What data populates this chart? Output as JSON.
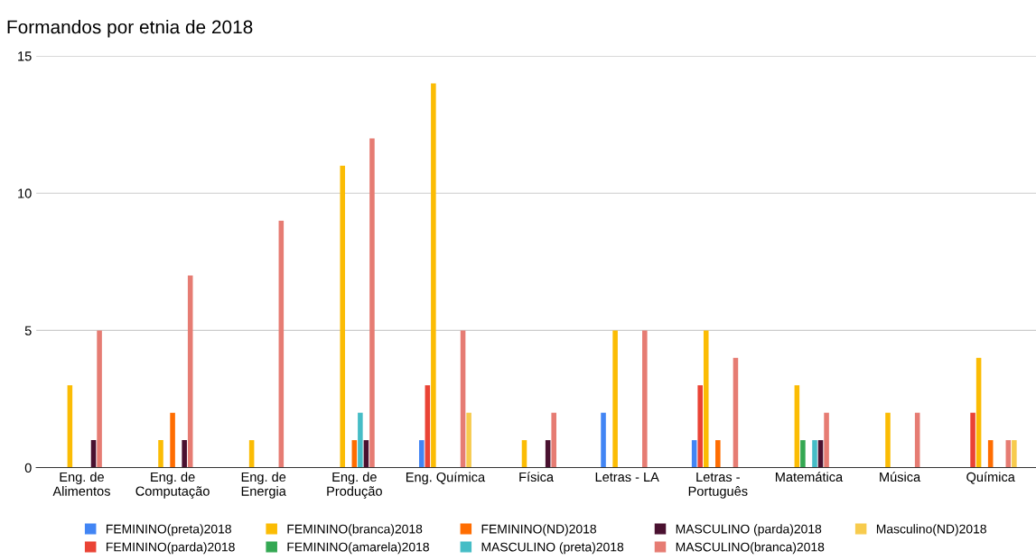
{
  "chart_data": {
    "type": "bar",
    "title": "Formandos por etnia de 2018",
    "categories": [
      "Eng. de\nAlimentos",
      "Eng. de\nComputação",
      "Eng. de\nEnergia",
      "Eng. de\nProdução",
      "Eng. Química",
      "Física",
      "Letras - LA",
      "Letras -\nPortuguês",
      "Matemática",
      "Música",
      "Química"
    ],
    "series": [
      {
        "name": "FEMININO(preta)2018",
        "color": "#4285f4",
        "values": [
          0,
          0,
          0,
          0,
          1,
          0,
          2,
          1,
          0,
          0,
          0
        ]
      },
      {
        "name": "FEMININO(parda)2018",
        "color": "#ea4335",
        "values": [
          0,
          0,
          0,
          0,
          3,
          0,
          0,
          3,
          0,
          0,
          2
        ]
      },
      {
        "name": "FEMININO(branca)2018",
        "color": "#fbbc04",
        "values": [
          3,
          1,
          1,
          11,
          14,
          1,
          5,
          5,
          3,
          2,
          4
        ]
      },
      {
        "name": "FEMININO(amarela)2018",
        "color": "#34a853",
        "values": [
          0,
          0,
          0,
          0,
          0,
          0,
          0,
          0,
          1,
          0,
          0
        ]
      },
      {
        "name": "FEMININO(ND)2018",
        "color": "#ff6d01",
        "values": [
          0,
          2,
          0,
          1,
          0,
          0,
          0,
          1,
          0,
          0,
          1
        ]
      },
      {
        "name": "MASCULINO (preta)2018",
        "color": "#46bdc6",
        "values": [
          0,
          0,
          0,
          2,
          0,
          0,
          0,
          0,
          1,
          0,
          0
        ]
      },
      {
        "name": "MASCULINO (parda)2018",
        "color": "#4a1130",
        "values": [
          1,
          1,
          0,
          1,
          0,
          1,
          0,
          0,
          1,
          0,
          0
        ]
      },
      {
        "name": "MASCULINO(branca)2018",
        "color": "#e67c73",
        "values": [
          5,
          7,
          9,
          12,
          5,
          2,
          5,
          4,
          2,
          2,
          1
        ]
      },
      {
        "name": "Masculino(ND)2018",
        "color": "#f7cb4d",
        "values": [
          0,
          0,
          0,
          0,
          2,
          0,
          0,
          0,
          0,
          0,
          1
        ]
      }
    ],
    "ylim": [
      0,
      15
    ],
    "yticks": [
      0,
      5,
      10,
      15
    ],
    "grid": "y",
    "legend": "bottom"
  }
}
